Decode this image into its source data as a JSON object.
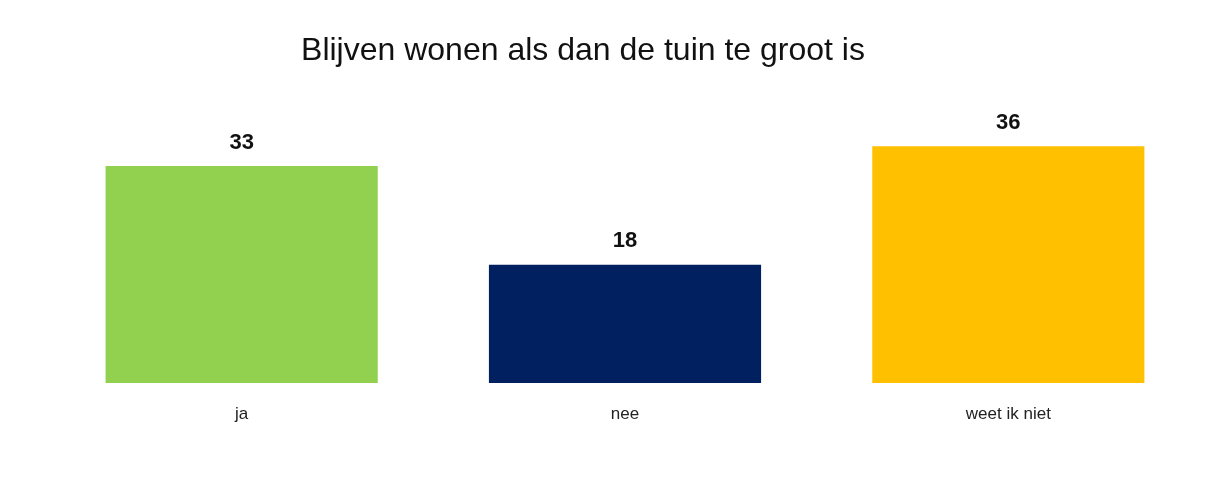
{
  "chart_data": {
    "type": "bar",
    "title": "Blijven wonen als dan de tuin te groot is",
    "categories": [
      "ja",
      "nee",
      "weet ik niet"
    ],
    "values": [
      33,
      18,
      36
    ],
    "colors": [
      "#92d050",
      "#002060",
      "#ffc000"
    ],
    "data_labels": true
  }
}
